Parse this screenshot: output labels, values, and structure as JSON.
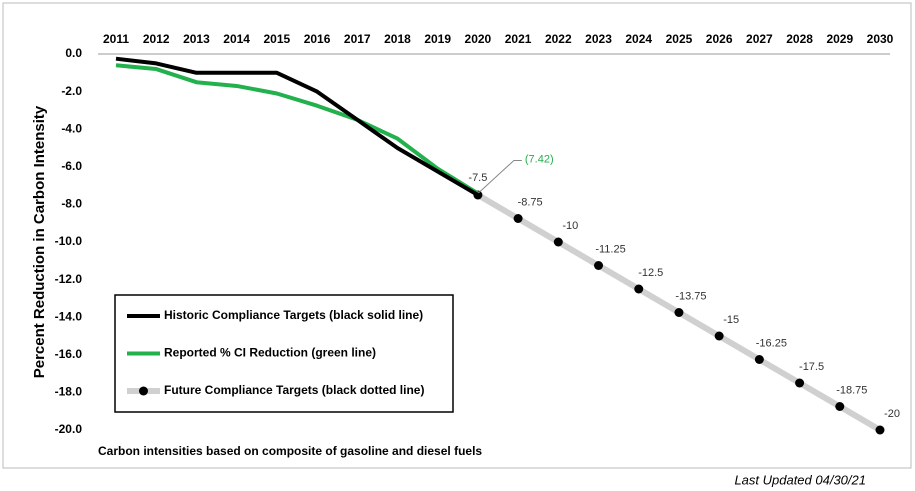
{
  "chart_data": {
    "type": "line",
    "y_label": "Percent Reduction in Carbon Intensity",
    "note": "Carbon intensities based on composite of gasoline and diesel fuels",
    "footer": "Last Updated 04/30/21",
    "categories": [
      "2011",
      "2012",
      "2013",
      "2014",
      "2015",
      "2016",
      "2017",
      "2018",
      "2019",
      "2020",
      "2021",
      "2022",
      "2023",
      "2024",
      "2025",
      "2026",
      "2027",
      "2028",
      "2029",
      "2030"
    ],
    "series": [
      {
        "name": "Historic Compliance Targets (black solid line)",
        "color": "#000000",
        "values": [
          -0.25,
          -0.5,
          -1.0,
          -1.0,
          -1.0,
          -2.0,
          -3.5,
          -5.0,
          -6.25,
          -7.5,
          null,
          null,
          null,
          null,
          null,
          null,
          null,
          null,
          null,
          null
        ]
      },
      {
        "name": "Reported % CI Reduction (green line)",
        "color": "#22b14c",
        "values": [
          -0.6,
          -0.8,
          -1.5,
          -1.7,
          -2.1,
          -2.75,
          -3.5,
          -4.5,
          -6.1,
          -7.42,
          null,
          null,
          null,
          null,
          null,
          null,
          null,
          null,
          null,
          null
        ],
        "value_labels": [
          null,
          null,
          null,
          null,
          null,
          null,
          null,
          null,
          null,
          "(7.42)",
          null,
          null,
          null,
          null,
          null,
          null,
          null,
          null,
          null,
          null
        ]
      },
      {
        "name": "Future Compliance Targets (black dotted line)",
        "color": "#d0d0d0",
        "marker": "circle",
        "marker_color": "#000000",
        "data_labels": true,
        "values": [
          null,
          null,
          null,
          null,
          null,
          null,
          null,
          null,
          null,
          -7.5,
          -8.75,
          -10,
          -11.25,
          -12.5,
          -13.75,
          -15,
          -16.25,
          -17.5,
          -18.75,
          -20
        ]
      }
    ],
    "ylim": [
      0,
      -20
    ],
    "yticks": [
      {
        "value": 0,
        "label": "0.0"
      },
      {
        "value": -2,
        "label": "-2.0"
      },
      {
        "value": -4,
        "label": "-4.0"
      },
      {
        "value": -6,
        "label": "-6.0"
      },
      {
        "value": -8,
        "label": "-8.0"
      },
      {
        "value": -10,
        "label": "-10.0"
      },
      {
        "value": -12,
        "label": "-12.0"
      },
      {
        "value": -14,
        "label": "-14.0"
      },
      {
        "value": -16,
        "label": "-16.0"
      },
      {
        "value": -18,
        "label": "-18.0"
      },
      {
        "value": -20,
        "label": "-20.0"
      }
    ],
    "legend": "lower-left",
    "grid": false
  }
}
